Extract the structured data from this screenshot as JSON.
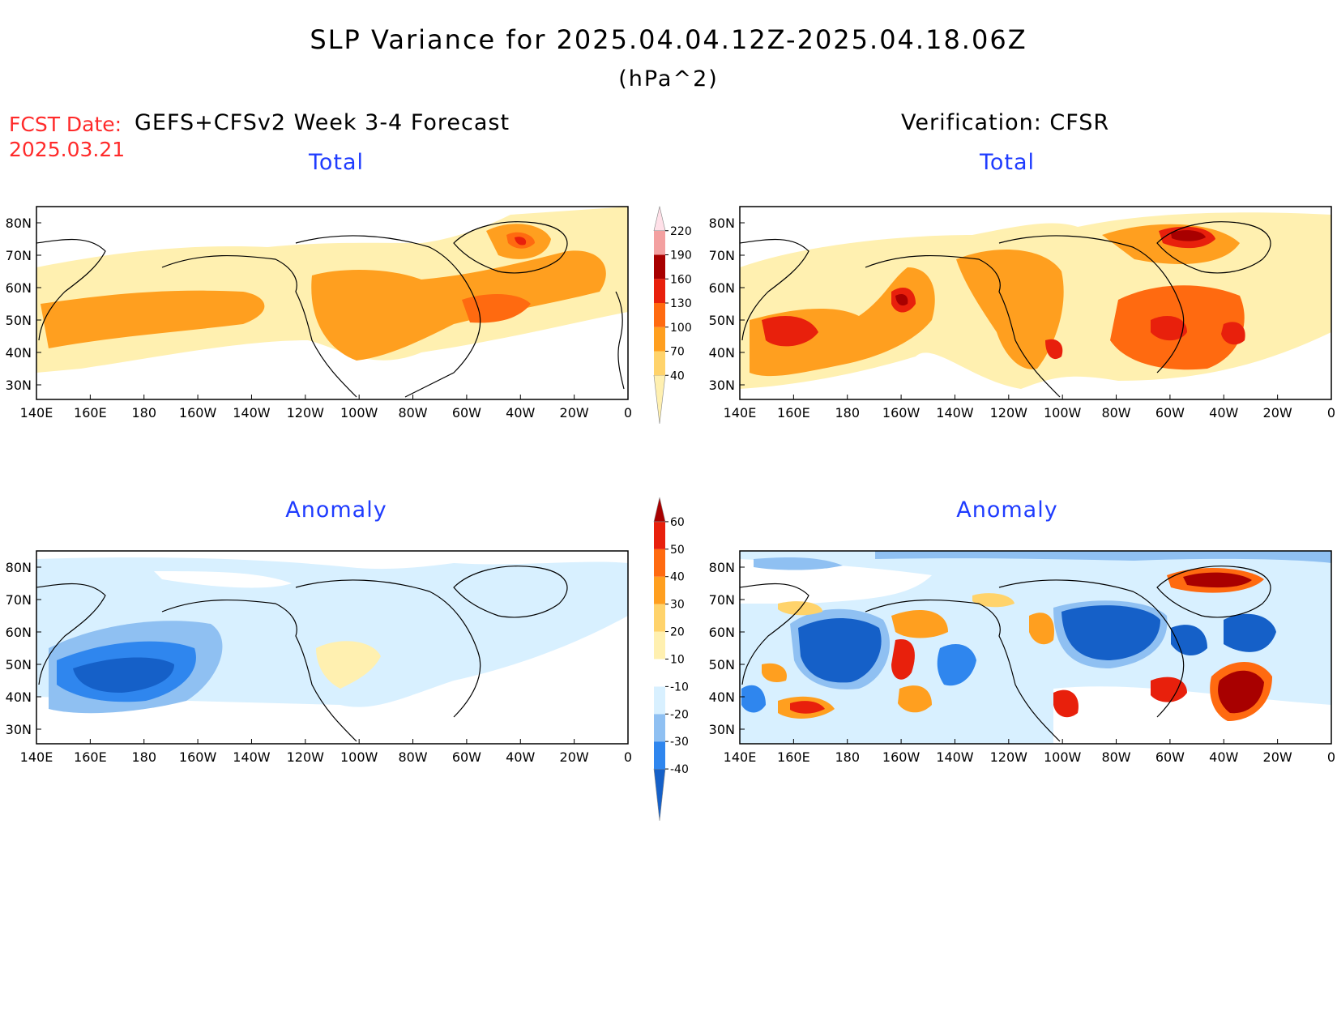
{
  "header": {
    "title": "SLP Variance for 2025.04.04.12Z-2025.04.18.06Z",
    "units": "(hPa^2)",
    "fcst_label": "FCST Date:",
    "fcst_date": "2025.03.21"
  },
  "columns": {
    "left": "GEFS+CFSv2 Week 3-4 Forecast",
    "right": "Verification: CFSR"
  },
  "panels": {
    "fc_total": "Total",
    "vf_total": "Total",
    "fc_anom": "Anomaly",
    "vf_anom": "Anomaly"
  },
  "axes": {
    "lat_labels": [
      "80N",
      "70N",
      "60N",
      "50N",
      "40N",
      "30N"
    ],
    "lon_labels": [
      "140E",
      "160E",
      "180",
      "160W",
      "140W",
      "120W",
      "100W",
      "80W",
      "60W",
      "40W",
      "20W",
      "0"
    ]
  },
  "colorbars": {
    "total": {
      "levels": [
        "40",
        "70",
        "100",
        "130",
        "160",
        "190",
        "220"
      ],
      "colors": [
        "#fff0b0",
        "#ffd36b",
        "#ff9f1f",
        "#ff6a10",
        "#e8200c",
        "#a80000",
        "#f3a0a0",
        "#ffe0e8"
      ]
    },
    "anomaly": {
      "levels": [
        "-40",
        "-30",
        "-20",
        "-10",
        "10",
        "20",
        "30",
        "40",
        "50",
        "60"
      ],
      "colors": [
        "#1560c8",
        "#2f86ee",
        "#8fc0f2",
        "#d8f0ff",
        "#ffffff",
        "#fff0b0",
        "#ffd36b",
        "#ff9f1f",
        "#ff6a10",
        "#e8200c",
        "#a80000"
      ]
    }
  }
}
